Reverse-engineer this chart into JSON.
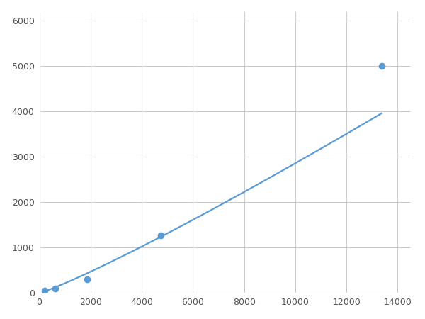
{
  "x": [
    200,
    625,
    1875,
    4750,
    13375
  ],
  "y": [
    50,
    100,
    310,
    1275,
    5000
  ],
  "line_color": "#5B9BD5",
  "marker_color": "#5B9BD5",
  "marker_size": 7,
  "line_width": 1.6,
  "xlim": [
    0,
    14500
  ],
  "ylim": [
    0,
    6200
  ],
  "xticks": [
    0,
    2000,
    4000,
    6000,
    8000,
    10000,
    12000,
    14000
  ],
  "yticks": [
    0,
    1000,
    2000,
    3000,
    4000,
    5000,
    6000
  ],
  "grid_color": "#CCCCCC",
  "background_color": "#FFFFFF",
  "figure_bg": "#FFFFFF",
  "tick_labelsize": 9,
  "tick_color": "#555555"
}
